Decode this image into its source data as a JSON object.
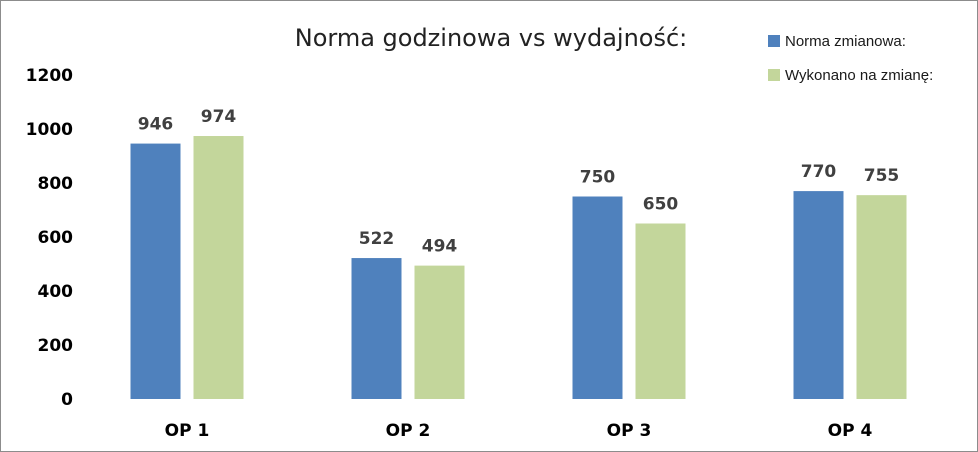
{
  "chart_data": {
    "type": "bar",
    "title": "Norma godzinowa vs wydajność:",
    "categories": [
      "OP 1",
      "OP 2",
      "OP 3",
      "OP 4"
    ],
    "series": [
      {
        "name": "Norma zmianowa:",
        "values": [
          946,
          522,
          750,
          770
        ],
        "color": "#4f81bd"
      },
      {
        "name": "Wykonano na zmianę:",
        "values": [
          974,
          494,
          650,
          755
        ],
        "color": "#c3d69b"
      }
    ],
    "y_ticks": [
      "0",
      "200",
      "400",
      "600",
      "800",
      "1000",
      "1200"
    ],
    "ylim": [
      0,
      1200
    ],
    "grid": false,
    "legend_position": "top-right"
  }
}
